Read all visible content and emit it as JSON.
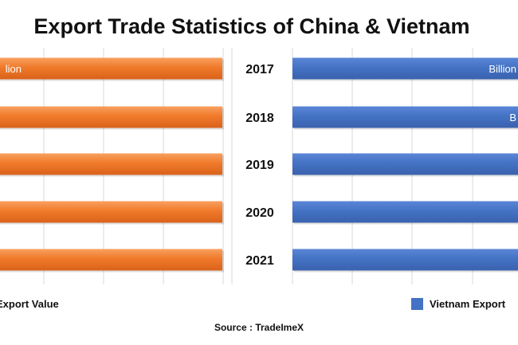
{
  "title": "Export Trade Statistics of China & Vietnam",
  "source": "Source : TradeImeX",
  "chart_data": {
    "type": "bar",
    "orientation": "horizontal",
    "layout": "mirrored",
    "categories": [
      "2017",
      "2018",
      "2019",
      "2020",
      "2021"
    ],
    "series": [
      {
        "name": "Export Value",
        "color": "#f07a2a",
        "data_label_text": [
          "lion",
          "",
          "",
          "",
          ""
        ]
      },
      {
        "name": "Vietnam Export",
        "color": "#4472c4",
        "data_label_text": [
          "Billion",
          "B",
          "",
          "",
          ""
        ]
      }
    ],
    "grid": true,
    "legend": "bottom"
  }
}
